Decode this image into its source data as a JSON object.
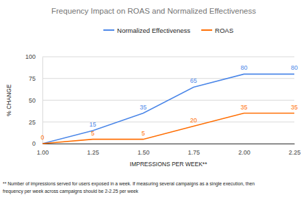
{
  "chart_data": {
    "type": "line",
    "title": "Frequency Impact on ROAS and Normalized Effectiveness",
    "x_label": "IMPRESSIONS PER WEEK**",
    "y_label": "% CHANGE",
    "footnote": [
      "** Number of impressions served for users exposed in a week. If measuring several campaigns as a single execution, then",
      "frequency per week across campaigns should be 2-2.25 per week"
    ],
    "x": [
      1,
      1.25,
      1.5,
      1.75,
      2,
      2.25
    ],
    "series": [
      {
        "name": "Normalized Effectiveness",
        "color": "#4a86e8",
        "values": [
          0,
          15,
          35,
          65,
          80,
          80
        ],
        "value_labels": [
          null,
          "15",
          "35",
          "65",
          "80",
          "80"
        ]
      },
      {
        "name": "ROAS",
        "color": "#ff6d01",
        "values": [
          0,
          5,
          5,
          20,
          35,
          35
        ]
      }
    ],
    "xlim": [
      1,
      2.25
    ],
    "xticks": [
      {
        "value": 1,
        "label": "1.00"
      },
      1.25,
      {
        "value": 1.5,
        "label": "1.50"
      },
      1.75,
      {
        "value": 2,
        "label": "2.00"
      },
      2.25
    ],
    "ylim": [
      0,
      100
    ],
    "yticks": [
      0,
      25,
      50,
      75,
      100
    ],
    "grid": true,
    "legend": "top",
    "data_labels": true
  }
}
